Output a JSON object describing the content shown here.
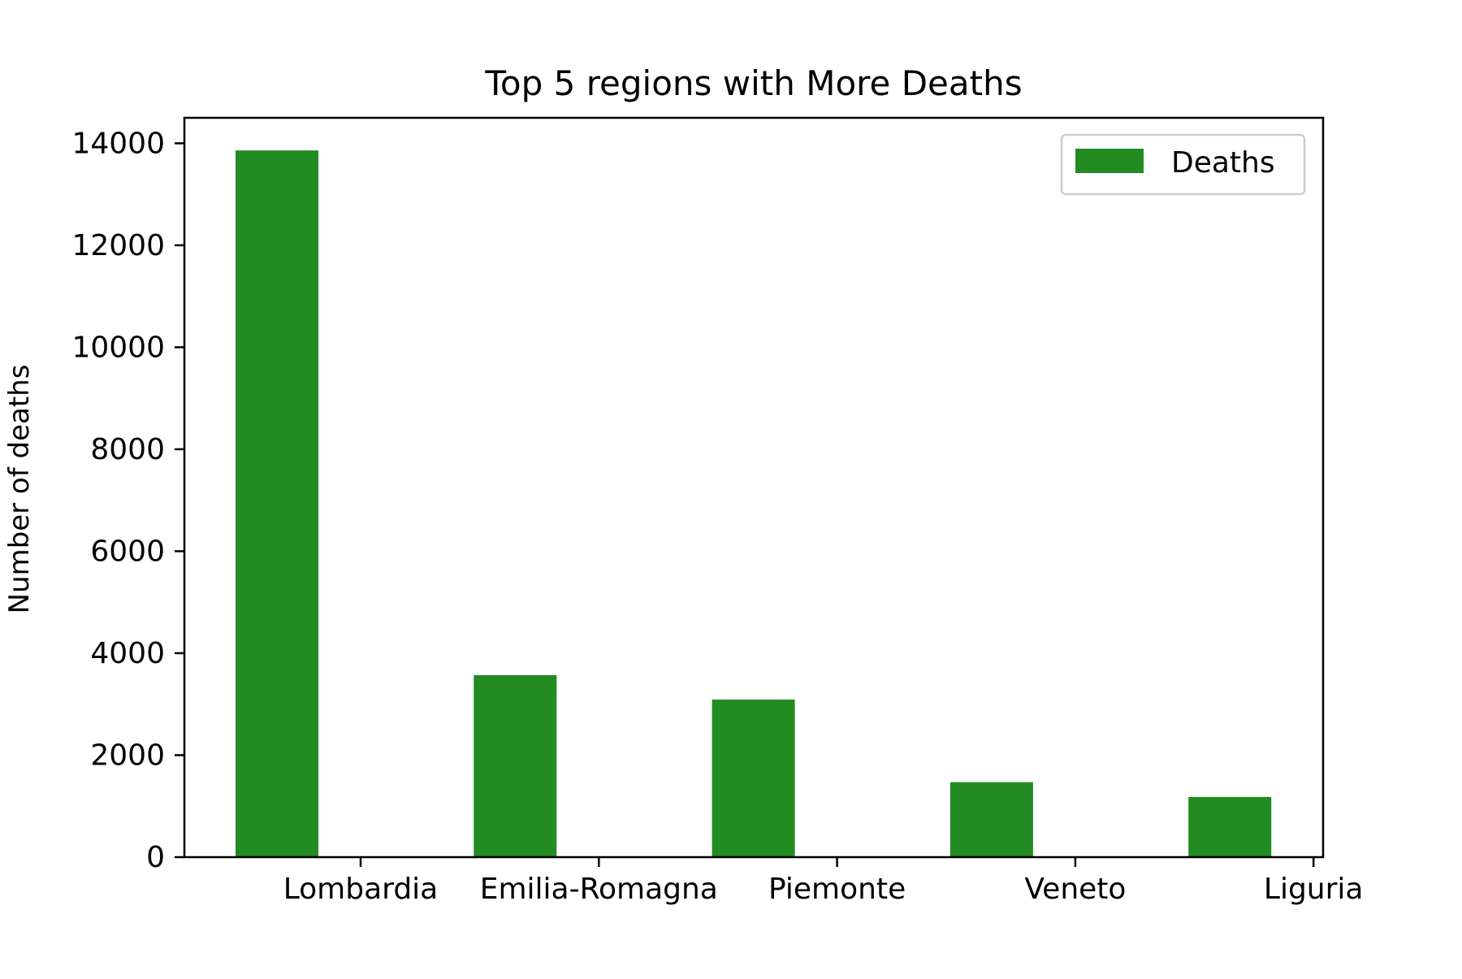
{
  "chart_data": {
    "type": "bar",
    "title": "Top 5 regions with More Deaths",
    "xlabel": "",
    "ylabel": "Number of deaths",
    "categories": [
      "Lombardia",
      "Emilia-Romagna",
      "Piemonte",
      "Veneto",
      "Liguria"
    ],
    "series": [
      {
        "name": "Deaths",
        "values": [
          13860,
          3570,
          3090,
          1470,
          1180
        ]
      }
    ],
    "ylim": [
      0,
      14500
    ],
    "yticks": [
      0,
      2000,
      4000,
      6000,
      8000,
      10000,
      12000,
      14000
    ],
    "ytick_labels": [
      "0",
      "2000",
      "4000",
      "6000",
      "8000",
      "10000",
      "12000",
      "14000"
    ],
    "grid": false,
    "legend_position": "top-right",
    "bar_color": "#228b22"
  }
}
